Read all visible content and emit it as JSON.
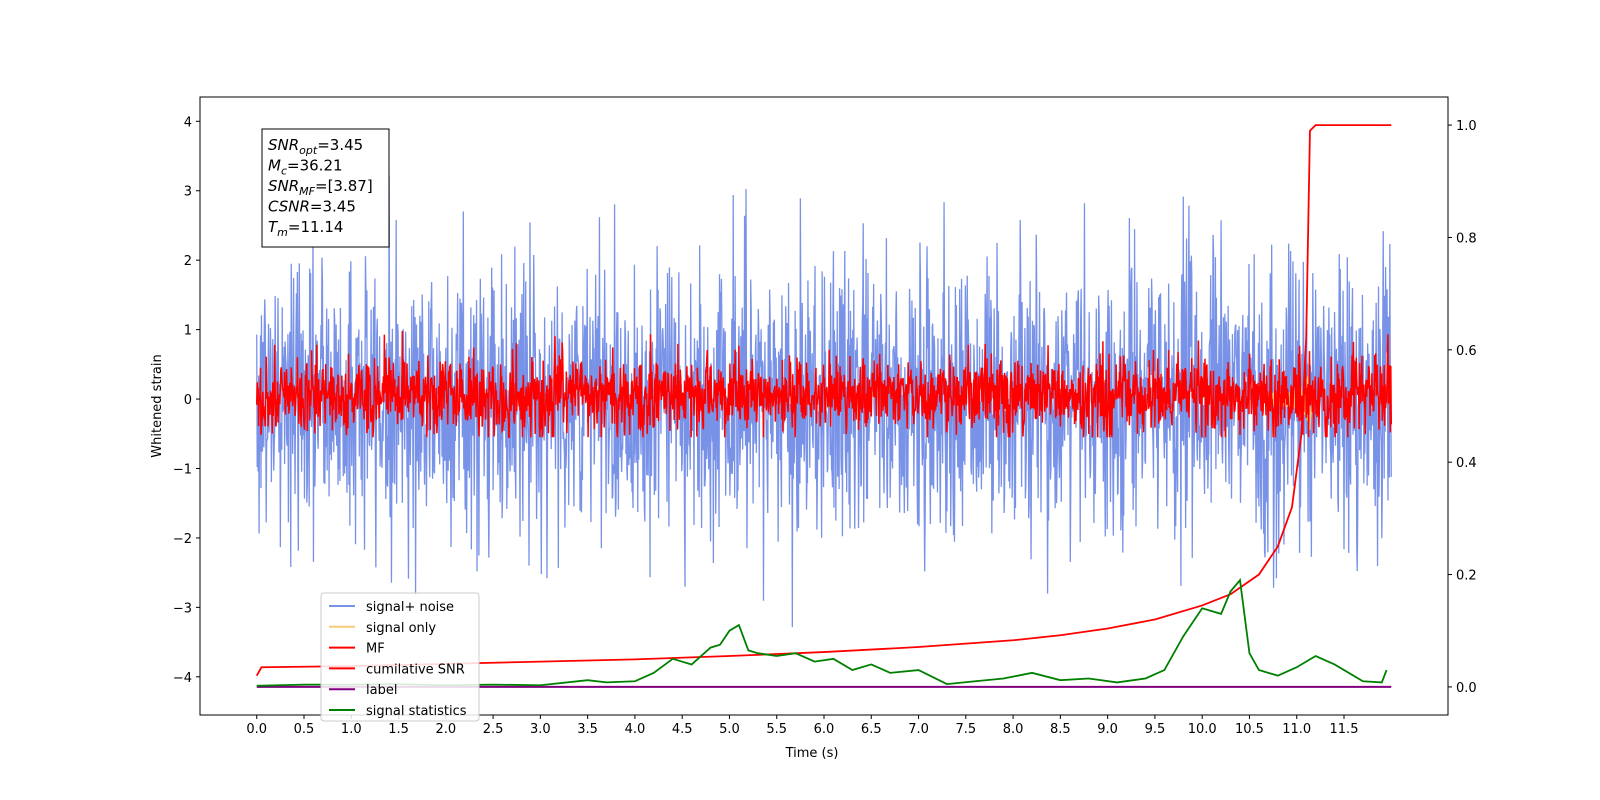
{
  "chart_data": {
    "type": "line",
    "xlabel": "Time (s)",
    "ylabel": "Whitened strain",
    "xlim": [
      -0.6,
      12.6
    ],
    "ylim": [
      -4.55,
      4.35
    ],
    "y2lim": [
      -0.05,
      1.05
    ],
    "xticks": [
      "0.0",
      "0.5",
      "1.0",
      "1.5",
      "2.0",
      "2.5",
      "3.0",
      "3.5",
      "4.0",
      "4.5",
      "5.0",
      "5.5",
      "6.0",
      "6.5",
      "7.0",
      "7.5",
      "8.0",
      "8.5",
      "9.0",
      "9.5",
      "10.0",
      "10.5",
      "11.0",
      "11.5"
    ],
    "yticks": [
      "4",
      "3",
      "2",
      "1",
      "0",
      "−1",
      "−2",
      "−3",
      "−4"
    ],
    "y2ticks": [
      "1.0",
      "0.8",
      "0.6",
      "0.4",
      "0.2",
      "0.0"
    ],
    "legend_position": "lower-left",
    "legend": [
      "signal+ noise",
      "signal only",
      "MF",
      "cumilative SNR",
      "label",
      "signal statistics"
    ],
    "info_box": {
      "lines": [
        {
          "sym": "SNR",
          "sub": "opt",
          "val": "=3.45"
        },
        {
          "sym": "M",
          "sub": "c",
          "val": "=36.21"
        },
        {
          "sym": "SNR",
          "sub": "MF",
          "val": "=[3.87]"
        },
        {
          "sym": "CSNR",
          "sub": "",
          "val": "=3.45"
        },
        {
          "sym": "T",
          "sub": "m",
          "val": "=11.14"
        }
      ]
    },
    "series": [
      {
        "name": "signal+ noise",
        "axis": "left",
        "color": "#7892e8",
        "description": "white noise, std about 1.0, range about -4 to 4, x from 0 to 12"
      },
      {
        "name": "signal only",
        "axis": "left",
        "color": "#f5cc77",
        "description": "chirp near merger time, peak about 1.0 at x=11.14"
      },
      {
        "name": "MF",
        "axis": "left",
        "color": "#ff0000",
        "description": "noise, std about 0.3, range about -0.5 to 1.0"
      },
      {
        "name": "cumilative SNR",
        "axis": "right",
        "color": "#ff0000",
        "x": [
          0,
          0.05,
          1,
          2,
          3,
          4,
          5,
          6,
          7,
          8,
          8.5,
          9,
          9.5,
          10,
          10.3,
          10.6,
          10.8,
          10.95,
          11.05,
          11.1,
          11.14,
          11.2,
          12
        ],
        "y": [
          0.02,
          0.035,
          0.037,
          0.041,
          0.045,
          0.049,
          0.055,
          0.062,
          0.071,
          0.083,
          0.092,
          0.104,
          0.12,
          0.145,
          0.165,
          0.2,
          0.25,
          0.32,
          0.45,
          0.62,
          0.99,
          1.0,
          1.0
        ]
      },
      {
        "name": "label",
        "axis": "right",
        "color": "#800080",
        "x": [
          0,
          12
        ],
        "y": [
          0.0,
          0.0
        ]
      },
      {
        "name": "signal statistics",
        "axis": "right",
        "color": "#008000",
        "x": [
          0,
          0.5,
          1,
          1.5,
          2,
          2.5,
          3,
          3.5,
          3.7,
          4,
          4.2,
          4.4,
          4.6,
          4.8,
          4.9,
          5.0,
          5.1,
          5.2,
          5.3,
          5.5,
          5.7,
          5.9,
          6.1,
          6.3,
          6.5,
          6.7,
          7.0,
          7.3,
          7.6,
          7.9,
          8.2,
          8.5,
          8.8,
          9.1,
          9.4,
          9.6,
          9.8,
          10.0,
          10.2,
          10.3,
          10.4,
          10.5,
          10.6,
          10.8,
          11.0,
          11.2,
          11.4,
          11.7,
          11.9,
          11.95
        ],
        "y": [
          0.002,
          0.004,
          0.004,
          0.005,
          0.003,
          0.004,
          0.003,
          0.012,
          0.008,
          0.01,
          0.025,
          0.05,
          0.04,
          0.07,
          0.075,
          0.1,
          0.11,
          0.065,
          0.06,
          0.055,
          0.06,
          0.045,
          0.05,
          0.03,
          0.04,
          0.025,
          0.03,
          0.005,
          0.01,
          0.015,
          0.025,
          0.012,
          0.015,
          0.008,
          0.015,
          0.03,
          0.09,
          0.14,
          0.13,
          0.17,
          0.19,
          0.06,
          0.03,
          0.02,
          0.035,
          0.055,
          0.04,
          0.01,
          0.008,
          0.03
        ]
      }
    ]
  }
}
